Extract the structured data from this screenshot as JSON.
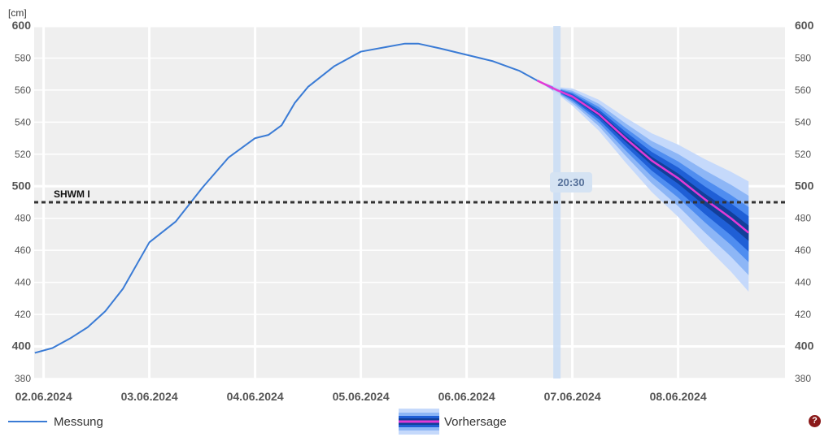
{
  "chart_data": {
    "type": "line",
    "unit_label": "[cm]",
    "ylim": [
      380,
      600
    ],
    "y_ticks": [
      380,
      400,
      420,
      440,
      460,
      480,
      500,
      520,
      540,
      560,
      580,
      600
    ],
    "y_major_ticks": [
      400,
      500,
      600
    ],
    "x_range": [
      "2024-06-02T00:00",
      "2024-06-08T23:59"
    ],
    "x_tick_labels": [
      "02.06.2024",
      "03.06.2024",
      "04.06.2024",
      "05.06.2024",
      "06.06.2024",
      "07.06.2024",
      "08.06.2024"
    ],
    "grid": true,
    "threshold": {
      "label": "SHWM I",
      "value": 490,
      "style": "dotted"
    },
    "current_time_label": "20:30",
    "current_time": "2024-06-06T20:30",
    "series": [
      {
        "name": "Messung",
        "color": "#3a7bd5",
        "points": [
          [
            "2024-06-01T22:00",
            396
          ],
          [
            "2024-06-02T02:00",
            399
          ],
          [
            "2024-06-02T06:00",
            405
          ],
          [
            "2024-06-02T10:00",
            412
          ],
          [
            "2024-06-02T14:00",
            422
          ],
          [
            "2024-06-02T18:00",
            436
          ],
          [
            "2024-06-03T00:00",
            465
          ],
          [
            "2024-06-03T06:00",
            478
          ],
          [
            "2024-06-03T12:00",
            499
          ],
          [
            "2024-06-03T18:00",
            518
          ],
          [
            "2024-06-04T00:00",
            530
          ],
          [
            "2024-06-04T03:00",
            532
          ],
          [
            "2024-06-04T06:00",
            538
          ],
          [
            "2024-06-04T09:00",
            552
          ],
          [
            "2024-06-04T12:00",
            562
          ],
          [
            "2024-06-04T18:00",
            575
          ],
          [
            "2024-06-05T00:00",
            584
          ],
          [
            "2024-06-05T06:00",
            587
          ],
          [
            "2024-06-05T10:00",
            589
          ],
          [
            "2024-06-05T13:00",
            589
          ],
          [
            "2024-06-05T18:00",
            586
          ],
          [
            "2024-06-06T00:00",
            582
          ],
          [
            "2024-06-06T06:00",
            578
          ],
          [
            "2024-06-06T12:00",
            572
          ],
          [
            "2024-06-06T16:00",
            566
          ]
        ]
      },
      {
        "name": "Vorhersage",
        "color": "#e23ad6",
        "points": [
          [
            "2024-06-06T16:00",
            566
          ],
          [
            "2024-06-06T20:30",
            560
          ],
          [
            "2024-06-07T00:00",
            556
          ],
          [
            "2024-06-07T06:00",
            545
          ],
          [
            "2024-06-07T12:00",
            530
          ],
          [
            "2024-06-07T18:00",
            516
          ],
          [
            "2024-06-08T00:00",
            505
          ],
          [
            "2024-06-08T06:00",
            492
          ],
          [
            "2024-06-08T12:00",
            480
          ],
          [
            "2024-06-08T16:00",
            471
          ]
        ],
        "uncertainty_spread": [
          0,
          2,
          5,
          9,
          13,
          17,
          21,
          25,
          29,
          32
        ]
      }
    ]
  },
  "legend": {
    "messung_label": "Messung",
    "vorhersage_label": "Vorhersage",
    "help_icon": "?"
  },
  "colors": {
    "plot_background": "#efefef",
    "gridline": "#ffffff",
    "band_outer": "#c5d9fb",
    "band_2": "#8db6f6",
    "band_3": "#4f8df0",
    "band_inner": "#1f5fd6",
    "band_core": "#123f9a",
    "now_marker": "#c8dcf5"
  }
}
